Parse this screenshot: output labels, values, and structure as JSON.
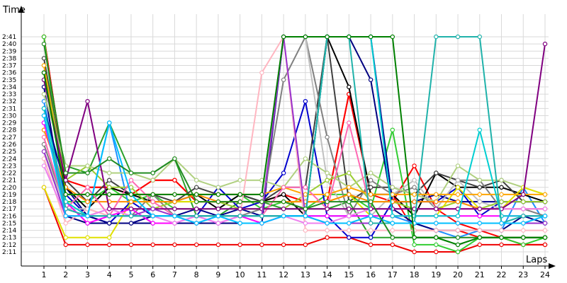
{
  "chart_data": {
    "type": "line",
    "title": "",
    "xlabel": "Laps",
    "ylabel": "Time",
    "x": [
      1,
      2,
      3,
      4,
      5,
      6,
      7,
      8,
      9,
      10,
      11,
      12,
      13,
      14,
      15,
      16,
      17,
      18,
      19,
      20,
      21,
      22,
      23,
      24
    ],
    "y_ticks": [
      "2:11",
      "2:12",
      "2:13",
      "2:14",
      "2:15",
      "2:16",
      "2:17",
      "2:18",
      "2:19",
      "2:20",
      "2:21",
      "2:22",
      "2:23",
      "2:24",
      "2:25",
      "2:26",
      "2:27",
      "2:28",
      "2:29",
      "2:30",
      "2:31",
      "2:32",
      "2:33",
      "2:34",
      "2:35",
      "2:36",
      "2:37",
      "2:38",
      "2:39",
      "2:40",
      "2:41"
    ],
    "y_range_seconds": [
      130.5,
      161.5
    ],
    "grid": true,
    "series": [
      {
        "color": "#ff0000",
        "values": [
          161,
          141,
          140,
          140,
          139,
          141,
          141,
          138,
          138,
          138,
          138,
          139,
          138,
          138,
          153,
          139,
          139,
          134,
          134,
          134,
          133,
          133,
          133,
          133
        ]
      },
      {
        "color": "#ff0000",
        "values": [
          161,
          141,
          140,
          140,
          139,
          141,
          141,
          138,
          138,
          138,
          138,
          139,
          138,
          138,
          153,
          139,
          138,
          143,
          137,
          135,
          134,
          133,
          132,
          132
        ]
      },
      {
        "color": "#ee0000",
        "values": [
          140,
          132,
          132,
          132,
          132,
          132,
          132,
          132,
          132,
          132,
          132,
          132,
          132,
          133,
          133,
          132,
          132,
          131,
          131,
          131,
          132,
          132,
          132,
          132
        ]
      },
      {
        "color": "#32cd32",
        "values": [
          161,
          138,
          138,
          140,
          138,
          139,
          137,
          137,
          137,
          139,
          137,
          138,
          137,
          139,
          139,
          137,
          148,
          132,
          132,
          131,
          133,
          133,
          132,
          133
        ]
      },
      {
        "color": "#2aa02a",
        "values": [
          155,
          143,
          142,
          149,
          142,
          142,
          144,
          136,
          136,
          138,
          138,
          137,
          137,
          137,
          138,
          133,
          133,
          133,
          133,
          132,
          133,
          133,
          133,
          133
        ]
      },
      {
        "color": "#1e90ff",
        "values": [
          152,
          137,
          136,
          149,
          136,
          136,
          136,
          135,
          136,
          136,
          136,
          136,
          136,
          136,
          136,
          136,
          136,
          135,
          134,
          133,
          134,
          134,
          140,
          135
        ]
      },
      {
        "color": "#0000cd",
        "values": [
          149,
          139,
          136,
          135,
          138,
          136,
          136,
          136,
          140,
          137,
          138,
          142,
          152,
          136,
          133,
          133,
          138,
          138,
          138,
          140,
          136,
          138,
          138,
          138
        ]
      },
      {
        "color": "#00008b",
        "values": [
          151,
          140,
          136,
          135,
          135,
          136,
          136,
          137,
          136,
          137,
          136,
          136,
          136,
          161,
          161,
          161,
          138,
          138,
          139,
          138,
          138,
          138,
          138,
          138
        ]
      },
      {
        "color": "#000080",
        "values": [
          154,
          136,
          135,
          135,
          135,
          135,
          135,
          135,
          135,
          135,
          135,
          161,
          161,
          161,
          161,
          155,
          137,
          135,
          134,
          134,
          134,
          134,
          136,
          135
        ]
      },
      {
        "color": "#000000",
        "values": [
          156,
          140,
          137,
          140,
          139,
          138,
          138,
          139,
          137,
          139,
          138,
          139,
          136,
          161,
          154,
          139,
          139,
          136,
          142,
          140,
          140,
          140,
          139,
          138
        ]
      },
      {
        "color": "#404040",
        "values": [
          158,
          141,
          138,
          141,
          139,
          139,
          138,
          140,
          139,
          139,
          138,
          140,
          140,
          161,
          138,
          140,
          140,
          139,
          142,
          141,
          140,
          141,
          138,
          138
        ]
      },
      {
        "color": "#808080",
        "values": [
          146,
          137,
          136,
          137,
          136,
          139,
          136,
          136,
          136,
          136,
          137,
          155,
          161,
          147,
          136,
          141,
          139,
          140,
          137,
          141,
          141,
          137,
          137,
          136
        ]
      },
      {
        "color": "#c0c0c0",
        "values": [
          145,
          137,
          137,
          136,
          137,
          137,
          137,
          137,
          137,
          137,
          137,
          161,
          161,
          141,
          136,
          136,
          139,
          141,
          137,
          141,
          138,
          137,
          137,
          137
        ]
      },
      {
        "color": "#9acd32",
        "values": [
          157,
          141,
          143,
          140,
          140,
          137,
          138,
          138,
          138,
          137,
          137,
          137,
          139,
          141,
          142,
          138,
          138,
          137,
          137,
          138,
          137,
          138,
          138,
          138
        ]
      },
      {
        "color": "#b0d080",
        "values": [
          153,
          143,
          143,
          142,
          142,
          141,
          144,
          141,
          140,
          141,
          141,
          140,
          144,
          142,
          140,
          142,
          140,
          139,
          138,
          143,
          141,
          141,
          140,
          139
        ]
      },
      {
        "color": "#e0e000",
        "values": [
          140,
          133,
          133,
          133,
          138,
          138,
          138,
          138,
          138,
          138,
          138,
          138,
          138,
          138,
          139,
          136,
          136,
          136,
          136,
          140,
          137,
          137,
          140,
          139
        ]
      },
      {
        "color": "#ff8c00",
        "values": [
          148,
          140,
          138,
          138,
          138,
          138,
          138,
          139,
          138,
          138,
          138,
          138,
          138,
          138,
          139,
          138,
          138,
          138,
          138,
          138,
          137,
          137,
          137,
          137
        ]
      },
      {
        "color": "#ffa500",
        "values": [
          157,
          139,
          139,
          139,
          139,
          139,
          139,
          139,
          139,
          139,
          139,
          140,
          139,
          139,
          140,
          139,
          139,
          139,
          139,
          139,
          139,
          139,
          139,
          139
        ]
      },
      {
        "color": "#ff69b4",
        "values": [
          147,
          137,
          140,
          136,
          141,
          138,
          136,
          135,
          136,
          136,
          136,
          140,
          140,
          137,
          149,
          137,
          137,
          137,
          137,
          137,
          137,
          137,
          137,
          137
        ]
      },
      {
        "color": "#ffb6c1",
        "values": [
          144,
          135,
          137,
          136,
          136,
          136,
          136,
          136,
          136,
          136,
          156,
          161,
          134,
          134,
          134,
          134,
          134,
          134,
          134,
          134,
          134,
          134,
          134,
          134
        ]
      },
      {
        "color": "#ff00ff",
        "values": [
          149,
          138,
          135,
          136,
          137,
          135,
          135,
          136,
          135,
          136,
          135,
          136,
          136,
          136,
          136,
          136,
          136,
          136,
          136,
          136,
          136,
          136,
          136,
          136
        ]
      },
      {
        "color": "#ee82ee",
        "values": [
          143,
          136,
          136,
          137,
          136,
          136,
          135,
          136,
          135,
          136,
          136,
          136,
          135,
          135,
          136,
          137,
          137,
          137,
          137,
          137,
          137,
          137,
          137,
          137
        ]
      },
      {
        "color": "#800080",
        "values": [
          155,
          141,
          152,
          137,
          137,
          137,
          137,
          137,
          137,
          137,
          137,
          137,
          137,
          137,
          137,
          137,
          137,
          137,
          137,
          137,
          137,
          137,
          139,
          160
        ]
      },
      {
        "color": "#9932cc",
        "values": [
          145,
          136,
          136,
          136,
          136,
          137,
          136,
          136,
          136,
          136,
          136,
          161,
          136,
          135,
          135,
          135,
          135,
          135,
          135,
          135,
          135,
          135,
          135,
          135
        ]
      },
      {
        "color": "#00ced1",
        "values": [
          151,
          138,
          136,
          136,
          136,
          136,
          136,
          136,
          136,
          136,
          136,
          136,
          136,
          161,
          161,
          161,
          136,
          136,
          136,
          136,
          148,
          136,
          136,
          136
        ]
      },
      {
        "color": "#20b2aa",
        "values": [
          150,
          137,
          136,
          136,
          136,
          136,
          136,
          136,
          136,
          136,
          136,
          136,
          136,
          161,
          161,
          135,
          135,
          135,
          161,
          161,
          161,
          135,
          136,
          136
        ]
      },
      {
        "color": "#00bfff",
        "values": [
          150,
          136,
          136,
          149,
          139,
          136,
          136,
          135,
          136,
          135,
          135,
          136,
          136,
          135,
          135,
          136,
          135,
          135,
          135,
          135,
          135,
          135,
          135,
          136
        ]
      },
      {
        "color": "#228b22",
        "values": [
          160,
          142,
          142,
          144,
          142,
          142,
          144,
          138,
          138,
          138,
          138,
          138,
          137,
          138,
          138,
          138,
          133,
          133,
          133,
          133,
          133,
          133,
          133,
          133
        ]
      },
      {
        "color": "#008000",
        "values": [
          156,
          139,
          139,
          139,
          139,
          139,
          139,
          139,
          139,
          139,
          139,
          161,
          161,
          161,
          161,
          161,
          161,
          133,
          133,
          132,
          133,
          133,
          133,
          133
        ]
      }
    ]
  }
}
